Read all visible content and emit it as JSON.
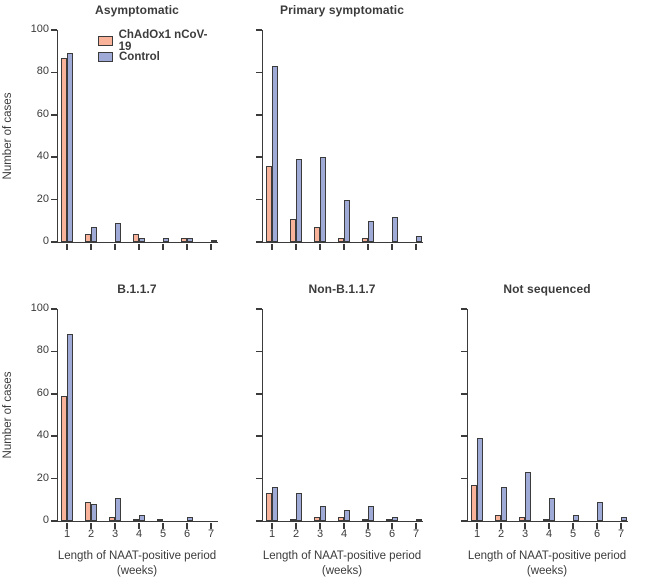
{
  "figure": {
    "ylabel": "Number of cases",
    "xlabel_line1": "Length of NAAT-positive period",
    "xlabel_line2": "(weeks)",
    "y_ticks": [
      0,
      20,
      40,
      60,
      80,
      100
    ],
    "x_tick_labels": [
      "1",
      "2",
      "3",
      "4",
      "5",
      "6",
      "7"
    ],
    "ylim": [
      0,
      100
    ]
  },
  "legend": {
    "items": [
      {
        "label": "ChAdOx1 nCoV-19",
        "color": "#f8b39a",
        "swatch": "vaccine-swatch"
      },
      {
        "label": "Control",
        "color": "#9fabd6",
        "swatch": "control-swatch"
      }
    ],
    "position": "upper-left of first subplot"
  },
  "colors": {
    "vaccine": "#f8b39a",
    "control": "#9fabd6",
    "stroke": "#3b3b3b",
    "axis": "#3b3b3b",
    "text": "#3b3b3b"
  },
  "chart_data": [
    {
      "type": "bar",
      "title": "Asymptomatic",
      "categories": [
        1,
        2,
        3,
        4,
        5,
        6,
        7
      ],
      "series": [
        {
          "name": "ChAdOx1 nCoV-19",
          "values": [
            87,
            4,
            0,
            4,
            0,
            2,
            0
          ]
        },
        {
          "name": "Control",
          "values": [
            89,
            7,
            9,
            2,
            2,
            2,
            1
          ]
        }
      ],
      "xlabel": "Length of NAAT-positive period (weeks)",
      "ylabel": "Number of cases",
      "ylim": [
        0,
        100
      ],
      "grid": false
    },
    {
      "type": "bar",
      "title": "Primary symptomatic",
      "categories": [
        1,
        2,
        3,
        4,
        5,
        6,
        7
      ],
      "series": [
        {
          "name": "ChAdOx1 nCoV-19",
          "values": [
            36,
            11,
            7,
            2,
            2,
            0,
            0
          ]
        },
        {
          "name": "Control",
          "values": [
            83,
            39,
            40,
            20,
            10,
            12,
            3
          ]
        }
      ],
      "xlabel": "Length of NAAT-positive period (weeks)",
      "ylabel": "Number of cases",
      "ylim": [
        0,
        100
      ],
      "grid": false
    },
    {
      "type": "bar",
      "title": "B.1.1.7",
      "categories": [
        1,
        2,
        3,
        4,
        5,
        6,
        7
      ],
      "series": [
        {
          "name": "ChAdOx1 nCoV-19",
          "values": [
            59,
            9,
            2,
            1,
            1,
            0,
            0
          ]
        },
        {
          "name": "Control",
          "values": [
            88,
            8,
            11,
            3,
            0,
            2,
            0
          ]
        }
      ],
      "xlabel": "Length of NAAT-positive period (weeks)",
      "ylabel": "Number of cases",
      "ylim": [
        0,
        100
      ],
      "grid": false
    },
    {
      "type": "bar",
      "title": "Non-B.1.1.7",
      "categories": [
        1,
        2,
        3,
        4,
        5,
        6,
        7
      ],
      "series": [
        {
          "name": "ChAdOx1 nCoV-19",
          "values": [
            13,
            1,
            2,
            2,
            1,
            1,
            0
          ]
        },
        {
          "name": "Control",
          "values": [
            16,
            13,
            7,
            5,
            7,
            2,
            1
          ]
        }
      ],
      "xlabel": "Length of NAAT-positive period (weeks)",
      "ylabel": "Number of cases",
      "ylim": [
        0,
        100
      ],
      "grid": false
    },
    {
      "type": "bar",
      "title": "Not sequenced",
      "categories": [
        1,
        2,
        3,
        4,
        5,
        6,
        7
      ],
      "series": [
        {
          "name": "ChAdOx1 nCoV-19",
          "values": [
            17,
            3,
            2,
            1,
            0,
            0,
            0
          ]
        },
        {
          "name": "Control",
          "values": [
            39,
            16,
            23,
            11,
            3,
            9,
            2
          ]
        }
      ],
      "xlabel": "Length of NAAT-positive period (weeks)",
      "ylabel": "Number of cases",
      "ylim": [
        0,
        100
      ],
      "grid": false
    }
  ]
}
